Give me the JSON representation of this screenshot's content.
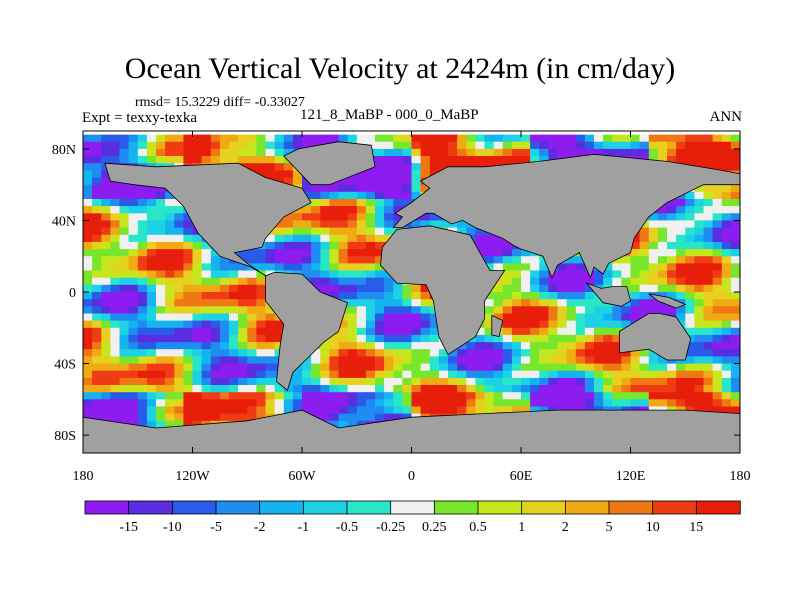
{
  "chart_data": {
    "type": "heatmap",
    "title": "Ocean Vertical Velocity at 2424m (in cm/day)",
    "stats_text": "rmsd= 15.3229 diff= -0.33027",
    "experiment": "Expt = texxy-texka",
    "subtitle": "121_8_MaBP - 000_0_MaBP",
    "season": "ANN",
    "x_ticks": [
      "180",
      "120W",
      "60W",
      "0",
      "60E",
      "120E",
      "180"
    ],
    "y_ticks": [
      "80N",
      "40N",
      "0",
      "40S",
      "80S"
    ],
    "xlim": [
      -180,
      180
    ],
    "ylim": [
      -90,
      90
    ],
    "land_color": "#a0a0a0",
    "colorbar": {
      "labels": [
        "-15",
        "-10",
        "-5",
        "-2",
        "-1",
        "-0.5",
        "-0.25",
        "0.25",
        "0.5",
        "1",
        "2",
        "5",
        "10",
        "15"
      ],
      "colors": [
        "#8c1cf0",
        "#5a2ee0",
        "#2a5ae8",
        "#1e8cf0",
        "#14b4f0",
        "#1ed2e6",
        "#28e6c8",
        "#f0f0f0",
        "#78e62a",
        "#c8e61e",
        "#e6d21e",
        "#f0aa14",
        "#f07814",
        "#f03c14",
        "#e61e0a"
      ]
    }
  }
}
